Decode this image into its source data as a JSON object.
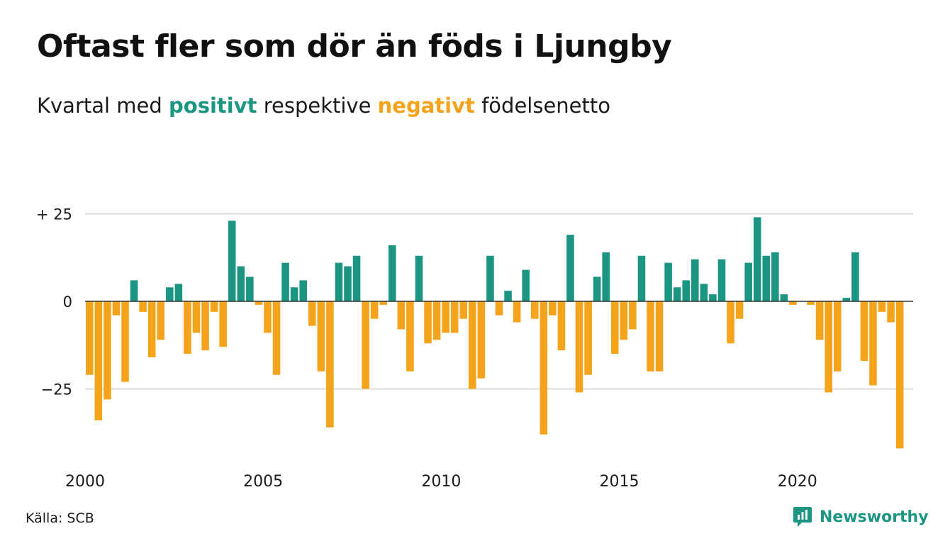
{
  "header": {
    "title": "Oftast fler som dör än föds i Ljungby",
    "subtitle_start": "Kvartal med ",
    "subtitle_positive": "positivt",
    "subtitle_middle": " respektive ",
    "subtitle_negative": "negativt",
    "subtitle_end": " födelsenetto"
  },
  "footer": {
    "source": "Källa: SCB",
    "brand": "Newsworthy"
  },
  "colors": {
    "positive": "#1a9683",
    "negative": "#f5a31a",
    "grid": "#dddddd",
    "zero_line": "#333333"
  },
  "chart_data": {
    "type": "bar",
    "title": "Oftast fler som dör än föds i Ljungby",
    "subtitle": "Kvartal med positivt respektive negativt födelsenetto",
    "x_start": 2000,
    "x_step": 0.25,
    "x_unit": "quarter",
    "xlim": [
      2000,
      2023.25
    ],
    "ylim": [
      -42,
      27
    ],
    "y_ticks": [
      25,
      0,
      -25
    ],
    "y_tick_labels": [
      "+ 25",
      "0",
      "−25"
    ],
    "x_ticks": [
      2000,
      2005,
      2010,
      2015,
      2020
    ],
    "x_tick_labels": [
      "2000",
      "2005",
      "2010",
      "2015",
      "2020"
    ],
    "grid": true,
    "values": [
      -21,
      -34,
      -28,
      -4,
      -23,
      6,
      -3,
      -16,
      -11,
      4,
      5,
      -15,
      -9,
      -14,
      -3,
      -13,
      23,
      10,
      7,
      -1,
      -9,
      -21,
      11,
      4,
      6,
      -7,
      -20,
      -36,
      11,
      10,
      13,
      -25,
      -5,
      -1,
      16,
      -8,
      -20,
      13,
      -12,
      -11,
      -9,
      -9,
      -5,
      -25,
      -22,
      13,
      -4,
      3,
      -6,
      9,
      -5,
      -38,
      -4,
      -14,
      19,
      -26,
      -21,
      7,
      14,
      -15,
      -11,
      -8,
      13,
      -20,
      -20,
      11,
      4,
      6,
      12,
      5,
      2,
      12,
      -12,
      -5,
      11,
      24,
      13,
      14,
      2,
      -1,
      0,
      -1,
      -11,
      -26,
      -20,
      1,
      14,
      -17,
      -24,
      -3,
      -6,
      -42
    ]
  }
}
